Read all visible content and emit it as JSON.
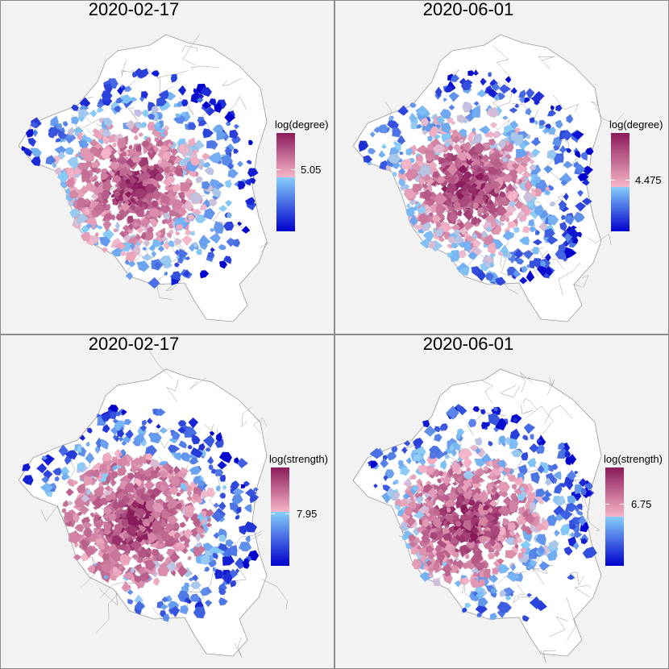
{
  "panels": [
    {
      "title": "2020-02-17",
      "legend": {
        "title": "log(degree)",
        "tick": "5.05"
      },
      "pink_level": 0.55,
      "pink_fraction": 0.45
    },
    {
      "title": "2020-06-01",
      "legend": {
        "title": "log(degree)",
        "tick": "4.475"
      },
      "pink_level": 0.45,
      "pink_fraction": 0.35
    },
    {
      "title": "2020-02-17",
      "legend": {
        "title": "log(strength)",
        "tick": "7.95"
      },
      "pink_level": 0.55,
      "pink_fraction": 0.6
    },
    {
      "title": "2020-06-01",
      "legend": {
        "title": "log(strength)",
        "tick": "6.75"
      },
      "pink_level": 0.5,
      "pink_fraction": 0.5
    }
  ],
  "colors": {
    "panel_bg": "#f2f2f2",
    "region_fill": "#ffffff",
    "region_stroke": "#9a9a9a",
    "scale_top": "#8b1a5a",
    "scale_mid_pink": "#f7b6c8",
    "scale_mid_blue": "#87cefa",
    "scale_bottom": "#0000cd"
  }
}
